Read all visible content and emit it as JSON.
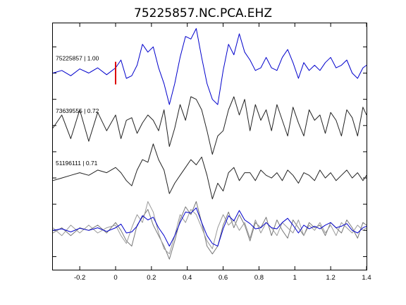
{
  "chart_data": {
    "type": "line",
    "title": "75225857.NC.PCA.EHZ",
    "xlabel": "",
    "ylabel": "",
    "xlim": [
      -0.35,
      1.4
    ],
    "x_ticks": [
      -0.2,
      0,
      0.2,
      0.4,
      0.6,
      0.8,
      1,
      1.2,
      1.4
    ],
    "x_tick_labels": [
      "-0.2",
      "0",
      "0.2",
      "0.4",
      "0.6",
      "0.8",
      "1",
      "1.2",
      "1.4"
    ],
    "grid": false,
    "pick_marker": {
      "x": 0,
      "color": "#dd0000"
    },
    "series": [
      {
        "name": "75225857 | 1.00",
        "color": "#0000cc",
        "offset": 4,
        "x": [
          -0.35,
          -0.3,
          -0.25,
          -0.2,
          -0.15,
          -0.1,
          -0.05,
          0.0,
          0.03,
          0.06,
          0.09,
          0.12,
          0.15,
          0.18,
          0.21,
          0.24,
          0.27,
          0.3,
          0.33,
          0.36,
          0.39,
          0.42,
          0.45,
          0.48,
          0.51,
          0.54,
          0.57,
          0.6,
          0.63,
          0.66,
          0.69,
          0.72,
          0.75,
          0.78,
          0.81,
          0.84,
          0.87,
          0.9,
          0.93,
          0.96,
          0.99,
          1.02,
          1.05,
          1.08,
          1.11,
          1.14,
          1.17,
          1.2,
          1.23,
          1.26,
          1.29,
          1.32,
          1.35,
          1.38,
          1.4
        ],
        "y": [
          0.0,
          0.05,
          -0.05,
          0.08,
          0.0,
          0.1,
          -0.03,
          0.1,
          0.25,
          -0.1,
          -0.05,
          0.15,
          0.55,
          0.4,
          0.5,
          0.1,
          -0.2,
          -0.6,
          -0.2,
          0.3,
          0.7,
          0.65,
          0.85,
          0.3,
          -0.2,
          -0.5,
          -0.6,
          0.05,
          0.55,
          0.35,
          0.75,
          0.4,
          0.25,
          0.05,
          0.1,
          0.3,
          0.1,
          0.05,
          0.3,
          0.45,
          0.2,
          -0.1,
          0.2,
          0.05,
          0.15,
          0.05,
          0.2,
          0.3,
          0.1,
          0.15,
          0.25,
          0.0,
          -0.1,
          0.1,
          0.15
        ]
      },
      {
        "name": "73639555 | 0.72",
        "color": "#222222",
        "offset": 3,
        "x": [
          -0.35,
          -0.3,
          -0.25,
          -0.2,
          -0.15,
          -0.1,
          -0.05,
          0.0,
          0.03,
          0.06,
          0.09,
          0.12,
          0.15,
          0.18,
          0.21,
          0.24,
          0.27,
          0.3,
          0.33,
          0.36,
          0.39,
          0.42,
          0.45,
          0.48,
          0.51,
          0.54,
          0.57,
          0.6,
          0.63,
          0.66,
          0.69,
          0.72,
          0.75,
          0.78,
          0.81,
          0.84,
          0.87,
          0.9,
          0.93,
          0.96,
          0.99,
          1.02,
          1.05,
          1.08,
          1.11,
          1.14,
          1.17,
          1.2,
          1.23,
          1.26,
          1.29,
          1.32,
          1.35,
          1.38,
          1.4
        ],
        "y": [
          -0.05,
          0.2,
          -0.25,
          0.3,
          -0.3,
          0.25,
          -0.1,
          0.2,
          -0.25,
          0.1,
          0.15,
          -0.15,
          0.05,
          0.2,
          0.1,
          -0.1,
          0.3,
          -0.4,
          -0.05,
          0.4,
          0.1,
          0.55,
          0.5,
          0.3,
          -0.1,
          -0.55,
          -0.2,
          -0.1,
          0.3,
          0.55,
          0.2,
          0.5,
          -0.1,
          0.4,
          0.1,
          0.3,
          -0.1,
          0.4,
          0.1,
          -0.2,
          0.35,
          0.05,
          -0.2,
          0.3,
          0.1,
          0.2,
          -0.15,
          0.25,
          0.1,
          -0.2,
          0.3,
          0.15,
          -0.2,
          0.35,
          0.2
        ]
      },
      {
        "name": "51196111 | 0.71",
        "color": "#222222",
        "offset": 2,
        "x": [
          -0.35,
          -0.3,
          -0.25,
          -0.2,
          -0.15,
          -0.1,
          -0.05,
          0.0,
          0.03,
          0.06,
          0.09,
          0.12,
          0.15,
          0.18,
          0.21,
          0.24,
          0.27,
          0.3,
          0.33,
          0.36,
          0.39,
          0.42,
          0.45,
          0.48,
          0.51,
          0.54,
          0.57,
          0.6,
          0.63,
          0.66,
          0.69,
          0.72,
          0.75,
          0.78,
          0.81,
          0.84,
          0.87,
          0.9,
          0.93,
          0.96,
          0.99,
          1.02,
          1.05,
          1.08,
          1.11,
          1.14,
          1.17,
          1.2,
          1.23,
          1.26,
          1.29,
          1.32,
          1.35,
          1.38,
          1.4
        ],
        "y": [
          -0.05,
          0.0,
          0.05,
          0.1,
          0.05,
          0.15,
          0.1,
          0.2,
          0.1,
          -0.05,
          -0.15,
          0.15,
          0.35,
          0.3,
          0.65,
          0.35,
          0.15,
          -0.3,
          -0.1,
          0.05,
          0.2,
          0.35,
          0.25,
          0.4,
          0.05,
          -0.4,
          -0.1,
          -0.25,
          0.1,
          0.2,
          -0.05,
          0.1,
          0.1,
          -0.05,
          0.15,
          0.05,
          0.0,
          0.1,
          -0.05,
          0.15,
          0.05,
          -0.1,
          0.1,
          0.05,
          -0.05,
          0.15,
          0.0,
          0.1,
          -0.05,
          0.05,
          0.15,
          0.0,
          0.1,
          -0.05,
          0.05
        ]
      },
      {
        "name": "",
        "color": "#777777",
        "offset": 1,
        "x": [
          -0.35,
          -0.3,
          -0.25,
          -0.2,
          -0.15,
          -0.1,
          -0.05,
          0.0,
          0.03,
          0.06,
          0.09,
          0.12,
          0.15,
          0.18,
          0.21,
          0.24,
          0.27,
          0.3,
          0.33,
          0.36,
          0.39,
          0.42,
          0.45,
          0.48,
          0.51,
          0.54,
          0.57,
          0.6,
          0.63,
          0.66,
          0.69,
          0.72,
          0.75,
          0.78,
          0.81,
          0.84,
          0.87,
          0.9,
          0.93,
          0.96,
          0.99,
          1.02,
          1.05,
          1.08,
          1.11,
          1.14,
          1.17,
          1.2,
          1.23,
          1.26,
          1.29,
          1.32,
          1.35,
          1.38,
          1.4
        ],
        "y": [
          -0.05,
          0.05,
          -0.1,
          0.05,
          0.0,
          0.1,
          -0.05,
          0.15,
          0.0,
          -0.2,
          -0.3,
          0.1,
          0.25,
          0.4,
          0.1,
          -0.1,
          -0.3,
          -0.55,
          -0.2,
          0.2,
          0.45,
          0.3,
          0.55,
          0.15,
          -0.3,
          -0.45,
          -0.3,
          0.1,
          0.35,
          0.05,
          0.3,
          0.1,
          -0.2,
          0.15,
          0.05,
          0.25,
          -0.1,
          0.2,
          0.0,
          -0.15,
          0.2,
          0.05,
          -0.1,
          0.15,
          0.05,
          0.1,
          -0.1,
          0.15,
          0.05,
          -0.05,
          0.2,
          0.05,
          -0.15,
          0.15,
          0.1
        ]
      },
      {
        "name": "",
        "color": "#999999",
        "offset": 1,
        "x": [
          -0.35,
          -0.3,
          -0.25,
          -0.2,
          -0.15,
          -0.1,
          -0.05,
          0.0,
          0.03,
          0.06,
          0.09,
          0.12,
          0.15,
          0.18,
          0.21,
          0.24,
          0.27,
          0.3,
          0.33,
          0.36,
          0.39,
          0.42,
          0.45,
          0.48,
          0.51,
          0.54,
          0.57,
          0.6,
          0.63,
          0.66,
          0.69,
          0.72,
          0.75,
          0.78,
          0.81,
          0.84,
          0.87,
          0.9,
          0.93,
          0.96,
          0.99,
          1.02,
          1.05,
          1.08,
          1.11,
          1.14,
          1.17,
          1.2,
          1.23,
          1.26,
          1.29,
          1.32,
          1.35,
          1.38,
          1.4
        ],
        "y": [
          0.05,
          -0.1,
          0.1,
          -0.05,
          0.1,
          -0.05,
          0.05,
          0.1,
          -0.1,
          -0.25,
          0.05,
          0.3,
          0.15,
          0.55,
          0.35,
          -0.05,
          -0.35,
          -0.45,
          -0.1,
          0.3,
          0.15,
          0.4,
          0.3,
          0.05,
          -0.2,
          -0.35,
          0.05,
          0.3,
          0.1,
          0.2,
          0.0,
          0.15,
          -0.15,
          0.2,
          -0.05,
          0.15,
          0.05,
          -0.1,
          0.15,
          0.05,
          -0.05,
          0.2,
          -0.1,
          0.1,
          0.0,
          0.15,
          -0.05,
          0.1,
          -0.1,
          0.15,
          0.05,
          -0.05,
          0.1,
          0.0,
          0.05
        ]
      },
      {
        "name": "",
        "color": "#0000cc",
        "offset": 1,
        "x": [
          -0.35,
          -0.3,
          -0.25,
          -0.2,
          -0.15,
          -0.1,
          -0.05,
          0.0,
          0.03,
          0.06,
          0.09,
          0.12,
          0.15,
          0.18,
          0.21,
          0.24,
          0.27,
          0.3,
          0.33,
          0.36,
          0.39,
          0.42,
          0.45,
          0.48,
          0.51,
          0.54,
          0.57,
          0.6,
          0.63,
          0.66,
          0.69,
          0.72,
          0.75,
          0.78,
          0.81,
          0.84,
          0.87,
          0.9,
          0.93,
          0.96,
          0.99,
          1.02,
          1.05,
          1.08,
          1.11,
          1.14,
          1.17,
          1.2,
          1.23,
          1.26,
          1.29,
          1.32,
          1.35,
          1.38,
          1.4
        ],
        "y": [
          0.0,
          0.03,
          -0.03,
          0.04,
          0.0,
          0.05,
          -0.02,
          0.05,
          0.12,
          -0.05,
          -0.03,
          0.08,
          0.28,
          0.2,
          0.25,
          0.05,
          -0.1,
          -0.3,
          -0.1,
          0.15,
          0.35,
          0.33,
          0.43,
          0.15,
          -0.1,
          -0.25,
          -0.3,
          0.03,
          0.28,
          0.18,
          0.38,
          0.2,
          0.13,
          0.03,
          0.05,
          0.15,
          0.05,
          0.03,
          0.15,
          0.23,
          0.1,
          -0.05,
          0.1,
          0.03,
          0.08,
          0.03,
          0.1,
          0.15,
          0.05,
          0.08,
          0.13,
          0.0,
          -0.05,
          0.05,
          0.08
        ]
      }
    ]
  }
}
